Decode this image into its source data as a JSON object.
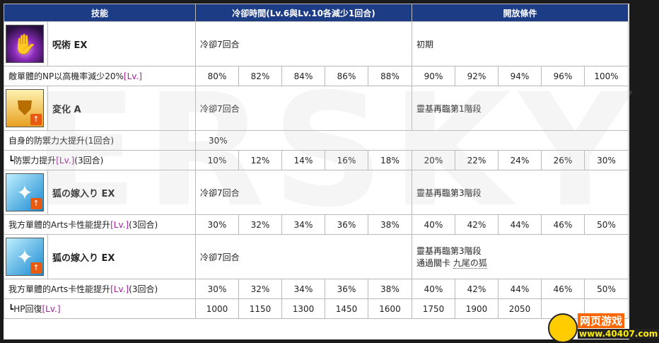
{
  "header": {
    "col_skill": "技能",
    "col_cooldown": "冷卻時間(Lv.6與Lv.10各減少1回合)",
    "col_unlock": "開放條件"
  },
  "skills": [
    {
      "name": "呪術 EX",
      "cooldown": "冷卻7回合",
      "unlock": "初期",
      "icon": "curse-icon",
      "effects": [
        {
          "text": "敵單體的NP以高機率減少20%",
          "lv": "[Lv.]",
          "suffix": "",
          "values": [
            "80%",
            "82%",
            "84%",
            "86%",
            "88%",
            "90%",
            "92%",
            "94%",
            "96%",
            "100%"
          ]
        }
      ]
    },
    {
      "name": "変化 A",
      "cooldown": "冷卻7回合",
      "unlock": "靈基再臨第1階段",
      "icon": "shield-icon",
      "effects": [
        {
          "text": "自身的防禦力大提升(1回合)",
          "single": "30%"
        },
        {
          "text": "┗防禦力提升",
          "lv": "[Lv.]",
          "suffix": "(3回合)",
          "values": [
            "10%",
            "12%",
            "14%",
            "16%",
            "18%",
            "20%",
            "22%",
            "24%",
            "26%",
            "30%"
          ]
        }
      ]
    },
    {
      "name": "狐の嫁入り EX",
      "cooldown": "冷卻7回合",
      "unlock": "靈基再臨第3階段",
      "icon": "arts-icon",
      "effects": [
        {
          "text": "我方單體的Arts卡性能提升",
          "lv": "[Lv.]",
          "suffix": "(3回合)",
          "values": [
            "30%",
            "32%",
            "34%",
            "36%",
            "38%",
            "40%",
            "42%",
            "44%",
            "46%",
            "50%"
          ]
        }
      ]
    },
    {
      "name": "狐の嫁入り EX",
      "cooldown": "冷卻7回合",
      "unlock": "靈基再臨第3階段",
      "unlock2": "通過關卡",
      "unlock_quest": "九尾の狐",
      "icon": "arts-icon",
      "effects": [
        {
          "text": "我方單體的Arts卡性能提升",
          "lv": "[Lv.]",
          "suffix": "(3回合)",
          "values": [
            "30%",
            "32%",
            "34%",
            "36%",
            "38%",
            "40%",
            "42%",
            "44%",
            "46%",
            "50%"
          ]
        },
        {
          "text": "┗HP回復",
          "lv": "[Lv.]",
          "suffix": "",
          "values": [
            "1000",
            "1150",
            "1300",
            "1450",
            "1600",
            "1750",
            "1900",
            "2050",
            "",
            ""
          ]
        }
      ]
    }
  ],
  "watermark": "ERSKY",
  "logo": {
    "line1": "网页游戏",
    "line2": "www.40407.com"
  }
}
